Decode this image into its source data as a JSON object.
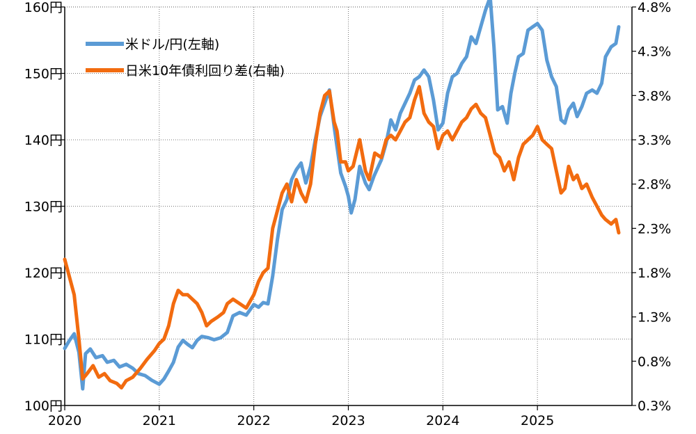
{
  "chart_data": {
    "type": "line",
    "x_axis": {
      "range": [
        2020.0,
        2026.0
      ],
      "ticks": [
        "2020",
        "2021",
        "2022",
        "2023",
        "2024",
        "2025"
      ]
    },
    "y_axis_left": {
      "range": [
        100,
        160
      ],
      "ticks": [
        "100円",
        "110円",
        "120円",
        "130円",
        "140円",
        "150円",
        "160円"
      ]
    },
    "y_axis_right": {
      "range": [
        0.3,
        4.8
      ],
      "ticks": [
        "0.3%",
        "0.8%",
        "1.3%",
        "1.8%",
        "2.3%",
        "2.8%",
        "3.3%",
        "3.8%",
        "4.3%",
        "4.8%"
      ]
    },
    "grid": {
      "vertical": true,
      "horizontal": true,
      "style": "dotted"
    },
    "legend_position": "top-left",
    "series": [
      {
        "name": "米ドル/円(左軸)",
        "axis": "left",
        "color": "#5b9bd5",
        "points": [
          [
            2020.0,
            108.6
          ],
          [
            2020.05,
            109.8
          ],
          [
            2020.1,
            110.8
          ],
          [
            2020.15,
            108.0
          ],
          [
            2020.19,
            102.5
          ],
          [
            2020.22,
            107.8
          ],
          [
            2020.27,
            108.5
          ],
          [
            2020.33,
            107.2
          ],
          [
            2020.4,
            107.5
          ],
          [
            2020.45,
            106.5
          ],
          [
            2020.52,
            106.8
          ],
          [
            2020.58,
            105.8
          ],
          [
            2020.65,
            106.2
          ],
          [
            2020.72,
            105.6
          ],
          [
            2020.78,
            104.8
          ],
          [
            2020.85,
            104.5
          ],
          [
            2020.92,
            103.8
          ],
          [
            2021.0,
            103.2
          ],
          [
            2021.05,
            104.0
          ],
          [
            2021.1,
            105.2
          ],
          [
            2021.15,
            106.5
          ],
          [
            2021.2,
            108.8
          ],
          [
            2021.25,
            109.8
          ],
          [
            2021.3,
            109.2
          ],
          [
            2021.35,
            108.7
          ],
          [
            2021.4,
            109.8
          ],
          [
            2021.45,
            110.4
          ],
          [
            2021.52,
            110.2
          ],
          [
            2021.58,
            109.9
          ],
          [
            2021.65,
            110.2
          ],
          [
            2021.72,
            111.0
          ],
          [
            2021.78,
            113.5
          ],
          [
            2021.85,
            114.0
          ],
          [
            2021.92,
            113.6
          ],
          [
            2022.0,
            115.2
          ],
          [
            2022.05,
            114.8
          ],
          [
            2022.1,
            115.5
          ],
          [
            2022.15,
            115.3
          ],
          [
            2022.2,
            119.5
          ],
          [
            2022.25,
            125.0
          ],
          [
            2022.3,
            129.5
          ],
          [
            2022.35,
            131.0
          ],
          [
            2022.4,
            134.0
          ],
          [
            2022.45,
            135.5
          ],
          [
            2022.5,
            136.5
          ],
          [
            2022.55,
            133.5
          ],
          [
            2022.6,
            136.0
          ],
          [
            2022.65,
            140.0
          ],
          [
            2022.7,
            143.5
          ],
          [
            2022.75,
            145.5
          ],
          [
            2022.8,
            147.5
          ],
          [
            2022.85,
            142.0
          ],
          [
            2022.88,
            139.0
          ],
          [
            2022.92,
            135.0
          ],
          [
            2022.97,
            133.0
          ],
          [
            2023.0,
            131.5
          ],
          [
            2023.03,
            129.0
          ],
          [
            2023.07,
            131.0
          ],
          [
            2023.12,
            136.0
          ],
          [
            2023.18,
            133.5
          ],
          [
            2023.22,
            132.5
          ],
          [
            2023.27,
            134.5
          ],
          [
            2023.35,
            137.0
          ],
          [
            2023.4,
            139.5
          ],
          [
            2023.45,
            143.0
          ],
          [
            2023.5,
            141.5
          ],
          [
            2023.55,
            144.0
          ],
          [
            2023.6,
            145.5
          ],
          [
            2023.65,
            147.0
          ],
          [
            2023.7,
            149.0
          ],
          [
            2023.75,
            149.5
          ],
          [
            2023.8,
            150.5
          ],
          [
            2023.85,
            149.5
          ],
          [
            2023.9,
            146.0
          ],
          [
            2023.95,
            141.5
          ],
          [
            2024.0,
            142.5
          ],
          [
            2024.05,
            147.0
          ],
          [
            2024.1,
            149.5
          ],
          [
            2024.15,
            150.0
          ],
          [
            2024.2,
            151.5
          ],
          [
            2024.25,
            152.5
          ],
          [
            2024.3,
            155.5
          ],
          [
            2024.35,
            154.5
          ],
          [
            2024.4,
            157.0
          ],
          [
            2024.45,
            159.5
          ],
          [
            2024.5,
            161.5
          ],
          [
            2024.54,
            154.0
          ],
          [
            2024.58,
            144.5
          ],
          [
            2024.63,
            145.0
          ],
          [
            2024.68,
            142.5
          ],
          [
            2024.72,
            147.0
          ],
          [
            2024.76,
            150.0
          ],
          [
            2024.8,
            152.5
          ],
          [
            2024.85,
            153.0
          ],
          [
            2024.9,
            156.5
          ],
          [
            2024.95,
            157.0
          ],
          [
            2025.0,
            157.5
          ],
          [
            2025.05,
            156.5
          ],
          [
            2025.1,
            152.0
          ],
          [
            2025.15,
            149.5
          ],
          [
            2025.2,
            148.0
          ],
          [
            2025.25,
            143.0
          ],
          [
            2025.29,
            142.5
          ],
          [
            2025.33,
            144.5
          ],
          [
            2025.38,
            145.5
          ],
          [
            2025.42,
            143.5
          ],
          [
            2025.47,
            145.0
          ],
          [
            2025.52,
            147.0
          ],
          [
            2025.58,
            147.5
          ],
          [
            2025.63,
            147.0
          ],
          [
            2025.68,
            148.5
          ],
          [
            2025.72,
            152.5
          ],
          [
            2025.78,
            154.0
          ],
          [
            2025.83,
            154.5
          ],
          [
            2025.86,
            157.0
          ]
        ]
      },
      {
        "name": "日米10年債利回り差(右軸)",
        "axis": "right",
        "color": "#f26b0f",
        "points": [
          [
            2020.0,
            1.95
          ],
          [
            2020.05,
            1.75
          ],
          [
            2020.1,
            1.55
          ],
          [
            2020.15,
            1.05
          ],
          [
            2020.19,
            0.6
          ],
          [
            2020.23,
            0.65
          ],
          [
            2020.3,
            0.75
          ],
          [
            2020.36,
            0.62
          ],
          [
            2020.42,
            0.66
          ],
          [
            2020.48,
            0.58
          ],
          [
            2020.55,
            0.55
          ],
          [
            2020.6,
            0.5
          ],
          [
            2020.65,
            0.58
          ],
          [
            2020.72,
            0.62
          ],
          [
            2020.8,
            0.72
          ],
          [
            2020.87,
            0.82
          ],
          [
            2020.95,
            0.92
          ],
          [
            2021.0,
            1.0
          ],
          [
            2021.05,
            1.05
          ],
          [
            2021.1,
            1.2
          ],
          [
            2021.15,
            1.45
          ],
          [
            2021.2,
            1.6
          ],
          [
            2021.25,
            1.55
          ],
          [
            2021.3,
            1.55
          ],
          [
            2021.35,
            1.5
          ],
          [
            2021.4,
            1.45
          ],
          [
            2021.45,
            1.35
          ],
          [
            2021.5,
            1.2
          ],
          [
            2021.55,
            1.25
          ],
          [
            2021.62,
            1.3
          ],
          [
            2021.68,
            1.35
          ],
          [
            2021.72,
            1.45
          ],
          [
            2021.78,
            1.5
          ],
          [
            2021.85,
            1.45
          ],
          [
            2021.92,
            1.4
          ],
          [
            2022.0,
            1.55
          ],
          [
            2022.05,
            1.7
          ],
          [
            2022.1,
            1.8
          ],
          [
            2022.15,
            1.85
          ],
          [
            2022.2,
            2.3
          ],
          [
            2022.25,
            2.5
          ],
          [
            2022.3,
            2.7
          ],
          [
            2022.35,
            2.8
          ],
          [
            2022.4,
            2.6
          ],
          [
            2022.45,
            2.85
          ],
          [
            2022.5,
            2.7
          ],
          [
            2022.55,
            2.6
          ],
          [
            2022.6,
            2.8
          ],
          [
            2022.65,
            3.25
          ],
          [
            2022.7,
            3.6
          ],
          [
            2022.75,
            3.8
          ],
          [
            2022.8,
            3.85
          ],
          [
            2022.85,
            3.5
          ],
          [
            2022.88,
            3.4
          ],
          [
            2022.92,
            3.05
          ],
          [
            2022.97,
            3.05
          ],
          [
            2023.0,
            2.95
          ],
          [
            2023.05,
            3.0
          ],
          [
            2023.12,
            3.3
          ],
          [
            2023.18,
            2.95
          ],
          [
            2023.22,
            2.85
          ],
          [
            2023.28,
            3.15
          ],
          [
            2023.35,
            3.1
          ],
          [
            2023.4,
            3.3
          ],
          [
            2023.45,
            3.35
          ],
          [
            2023.5,
            3.3
          ],
          [
            2023.55,
            3.4
          ],
          [
            2023.6,
            3.5
          ],
          [
            2023.65,
            3.55
          ],
          [
            2023.7,
            3.75
          ],
          [
            2023.75,
            3.9
          ],
          [
            2023.8,
            3.6
          ],
          [
            2023.85,
            3.5
          ],
          [
            2023.9,
            3.45
          ],
          [
            2023.95,
            3.2
          ],
          [
            2024.0,
            3.35
          ],
          [
            2024.05,
            3.4
          ],
          [
            2024.1,
            3.3
          ],
          [
            2024.15,
            3.4
          ],
          [
            2024.2,
            3.5
          ],
          [
            2024.25,
            3.55
          ],
          [
            2024.3,
            3.65
          ],
          [
            2024.35,
            3.7
          ],
          [
            2024.4,
            3.6
          ],
          [
            2024.45,
            3.55
          ],
          [
            2024.5,
            3.35
          ],
          [
            2024.55,
            3.15
          ],
          [
            2024.6,
            3.1
          ],
          [
            2024.65,
            2.95
          ],
          [
            2024.7,
            3.05
          ],
          [
            2024.75,
            2.85
          ],
          [
            2024.8,
            3.1
          ],
          [
            2024.85,
            3.25
          ],
          [
            2024.9,
            3.3
          ],
          [
            2024.95,
            3.35
          ],
          [
            2025.0,
            3.45
          ],
          [
            2025.05,
            3.3
          ],
          [
            2025.1,
            3.25
          ],
          [
            2025.15,
            3.2
          ],
          [
            2025.2,
            2.95
          ],
          [
            2025.25,
            2.7
          ],
          [
            2025.29,
            2.75
          ],
          [
            2025.33,
            3.0
          ],
          [
            2025.38,
            2.85
          ],
          [
            2025.42,
            2.9
          ],
          [
            2025.47,
            2.75
          ],
          [
            2025.52,
            2.8
          ],
          [
            2025.58,
            2.65
          ],
          [
            2025.63,
            2.55
          ],
          [
            2025.68,
            2.45
          ],
          [
            2025.72,
            2.4
          ],
          [
            2025.78,
            2.35
          ],
          [
            2025.83,
            2.4
          ],
          [
            2025.86,
            2.25
          ]
        ]
      }
    ]
  }
}
